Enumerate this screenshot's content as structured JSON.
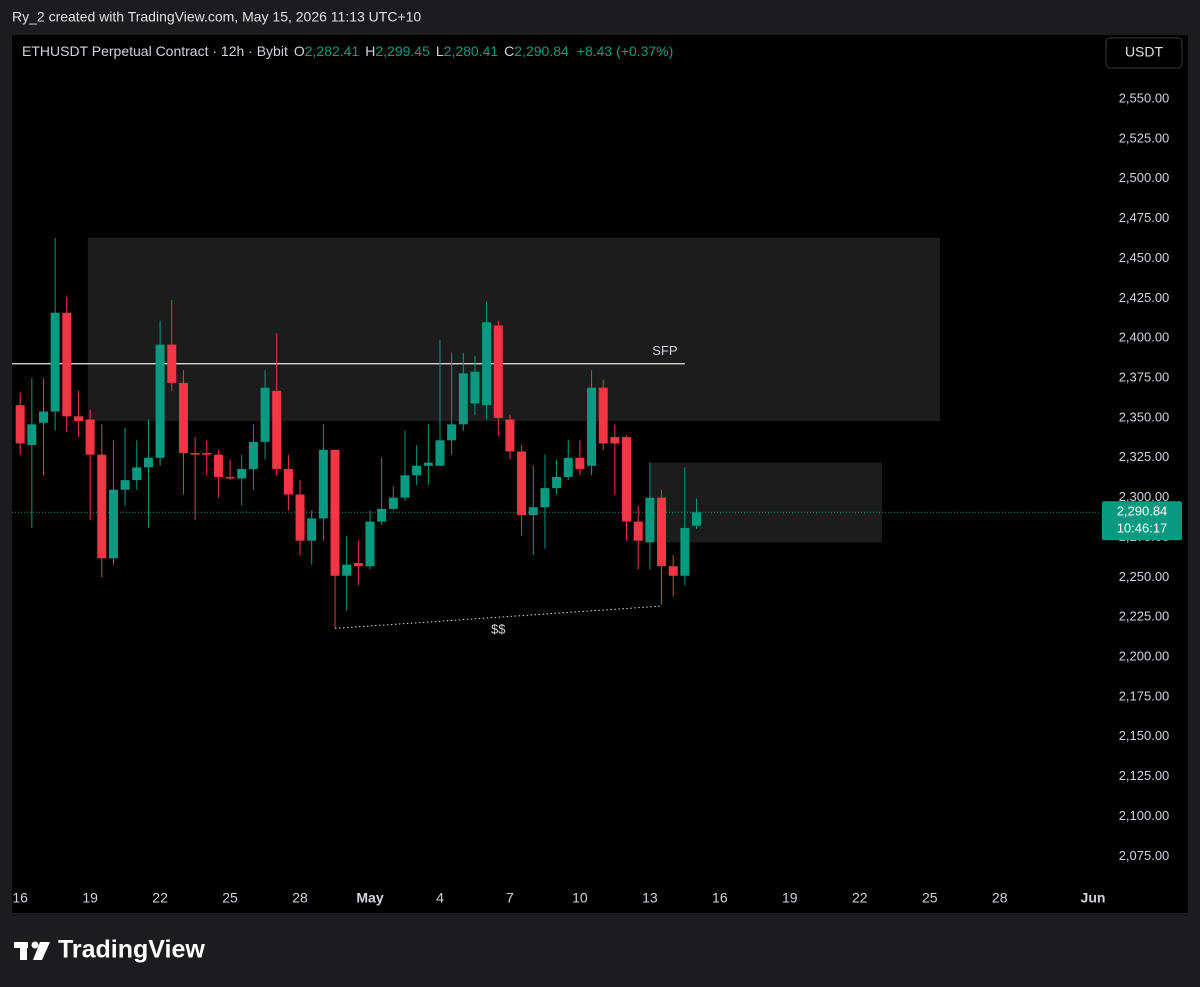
{
  "chart_data": {
    "type": "candlestick",
    "credit": "Ry_2 created with TradingView.com, May 15, 2026 11:13 UTC+10",
    "header": {
      "symbol": "ETHUSDT Perpetual Contract · 12h · Bybit",
      "o_label": "O",
      "o": "2,282.41",
      "h_label": "H",
      "h": "2,299.45",
      "l_label": "L",
      "l": "2,280.41",
      "c_label": "C",
      "c": "2,290.84",
      "change": "+8.43 (+0.37%)"
    },
    "currency": "USDT",
    "brand": "TradingView",
    "up_color": "#089981",
    "down_color": "#f23645",
    "open": [
      2358,
      2333,
      2347,
      2354,
      2416,
      2351,
      2349,
      2327,
      2262,
      2305,
      2311,
      2319,
      2325,
      2396,
      2372,
      2328,
      2328,
      2327,
      2313,
      2312,
      2318,
      2335,
      2367,
      2318,
      2302,
      2273,
      2287,
      2330,
      2251,
      2259,
      2257,
      2285,
      2293,
      2300,
      2314,
      2320,
      2320,
      2336,
      2346,
      2359,
      2358,
      2408,
      2349,
      2329,
      2289,
      2294,
      2306,
      2313,
      2325,
      2320,
      2369,
      2338,
      2338,
      2285,
      2272,
      2300,
      2257,
      2251,
      2282.41
    ],
    "high": [
      2366,
      2375,
      2375,
      2463,
      2426,
      2367,
      2355,
      2346,
      2336,
      2344,
      2336,
      2349,
      2411,
      2424,
      2380,
      2338,
      2336,
      2330,
      2324,
      2327,
      2346,
      2380,
      2403,
      2327,
      2311,
      2292,
      2346,
      2330,
      2276,
      2273,
      2292,
      2325,
      2307,
      2342,
      2333,
      2346,
      2399,
      2391,
      2391,
      2389,
      2423,
      2411,
      2352,
      2333,
      2320,
      2327,
      2324,
      2336,
      2336,
      2380,
      2374,
      2346,
      2339,
      2295,
      2322,
      2305,
      2264,
      2319,
      2299.45
    ],
    "low": [
      2327,
      2281,
      2314,
      2342,
      2341,
      2338,
      2286,
      2250,
      2258,
      2295,
      2305,
      2281,
      2320,
      2367,
      2302,
      2286,
      2314,
      2300,
      2311,
      2295,
      2305,
      2324,
      2314,
      2292,
      2264,
      2258,
      2273,
      2218,
      2229,
      2245,
      2255,
      2283,
      2292,
      2298,
      2308,
      2308,
      2320,
      2327,
      2342,
      2352,
      2349,
      2339,
      2324,
      2276,
      2264,
      2268,
      2302,
      2311,
      2314,
      2314,
      2330,
      2302,
      2273,
      2255,
      2255,
      2233,
      2238,
      2245,
      2280.41
    ],
    "close": [
      2334,
      2346,
      2354,
      2416,
      2351,
      2348,
      2327,
      2262,
      2305,
      2311,
      2319,
      2325,
      2396,
      2372,
      2328,
      2327,
      2327,
      2313,
      2312,
      2318,
      2335,
      2369,
      2318,
      2302,
      2273,
      2287,
      2330,
      2251,
      2258,
      2257,
      2285,
      2293,
      2300,
      2314,
      2320,
      2322,
      2336,
      2346,
      2378,
      2379,
      2410,
      2350,
      2329,
      2289,
      2294,
      2306,
      2313,
      2325,
      2318,
      2369,
      2334,
      2334,
      2285,
      2273,
      2300,
      2257,
      2251,
      2281,
      2290.84
    ],
    "last_price": {
      "value": 2290.84,
      "label": "2,290.84"
    },
    "countdown": "10:46:17",
    "xlim": [
      -0.7,
      92.6
    ],
    "xticks": [
      {
        "value": 0,
        "label": "16"
      },
      {
        "value": 6,
        "label": "19"
      },
      {
        "value": 12,
        "label": "22"
      },
      {
        "value": 18,
        "label": "25"
      },
      {
        "value": 24,
        "label": "28"
      },
      {
        "value": 30,
        "label": "May"
      },
      {
        "value": 36,
        "label": "4"
      },
      {
        "value": 42,
        "label": "7"
      },
      {
        "value": 48,
        "label": "10"
      },
      {
        "value": 54,
        "label": "13"
      },
      {
        "value": 60,
        "label": "16"
      },
      {
        "value": 66,
        "label": "19"
      },
      {
        "value": 72,
        "label": "22"
      },
      {
        "value": 78,
        "label": "25"
      },
      {
        "value": 84,
        "label": "28"
      },
      {
        "value": 92,
        "label": "Jun"
      }
    ],
    "ylim": [
      2058.3,
      2590.2
    ],
    "yticks": [
      {
        "value": 2550,
        "label": "2,550.00"
      },
      {
        "value": 2525,
        "label": "2,525.00"
      },
      {
        "value": 2500,
        "label": "2,500.00"
      },
      {
        "value": 2475,
        "label": "2,475.00"
      },
      {
        "value": 2450,
        "label": "2,450.00"
      },
      {
        "value": 2425,
        "label": "2,425.00"
      },
      {
        "value": 2400,
        "label": "2,400.00"
      },
      {
        "value": 2375,
        "label": "2,375.00"
      },
      {
        "value": 2350,
        "label": "2,350.00"
      },
      {
        "value": 2325,
        "label": "2,325.00"
      },
      {
        "value": 2300,
        "label": "2,300.00"
      },
      {
        "value": 2275,
        "label": "2,275.00"
      },
      {
        "value": 2250,
        "label": "2,250.00"
      },
      {
        "value": 2225,
        "label": "2,225.00"
      },
      {
        "value": 2200,
        "label": "2,200.00"
      },
      {
        "value": 2175,
        "label": "2,175.00"
      },
      {
        "value": 2150,
        "label": "2,150.00"
      },
      {
        "value": 2125,
        "label": "2,125.00"
      },
      {
        "value": 2100,
        "label": "2,100.00"
      },
      {
        "value": 2075,
        "label": "2,075.00"
      }
    ],
    "zones": [
      {
        "x": [
          5.8,
          78.9
        ],
        "y": [
          2348,
          2463
        ]
      },
      {
        "x": [
          54,
          73.9
        ],
        "y": [
          2272,
          2322
        ]
      }
    ],
    "sfp": {
      "label": "SFP",
      "x": [
        -0.7,
        57
      ],
      "y": 2384
    },
    "liquidity": {
      "label": "$$",
      "x": [
        27,
        55
      ],
      "y": [
        2218,
        2232
      ]
    }
  }
}
